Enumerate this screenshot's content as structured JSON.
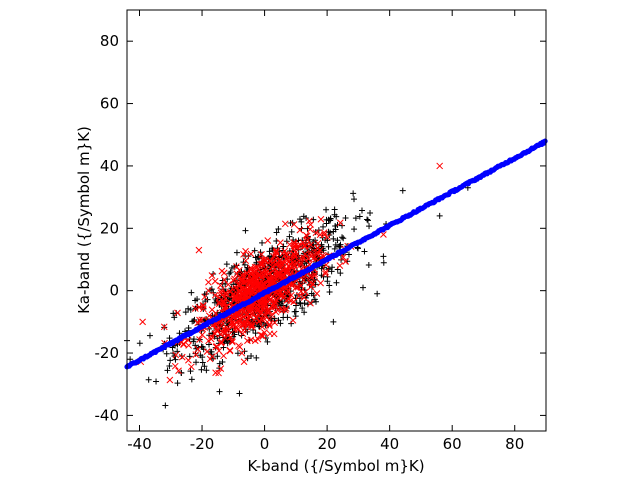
{
  "chart_data": {
    "type": "scatter",
    "xlabel": "K-band ({/Symbol m}K)",
    "ylabel": "Ka-band ({/Symbol m}K)",
    "xlim": [
      -44,
      90
    ],
    "ylim": [
      -45,
      90
    ],
    "x_ticks": [
      -40,
      -20,
      0,
      20,
      40,
      60,
      80
    ],
    "y_ticks": [
      -40,
      -20,
      0,
      20,
      40,
      60,
      80
    ],
    "x_tick_labels": [
      "-40",
      "-20",
      "0",
      "20",
      "40",
      "60",
      "80"
    ],
    "y_tick_labels": [
      "-40",
      "-20",
      "0",
      "20",
      "40",
      "60",
      "80"
    ],
    "grid": false,
    "legend": "none",
    "series": [
      {
        "marker": "plus",
        "color": "#000000",
        "description_count": 900,
        "center": [
          0,
          0
        ],
        "sd_x": 14,
        "sd_along": 0.6,
        "sd_perp": 7,
        "outliers": [
          [
            65,
            33
          ],
          [
            56,
            24
          ],
          [
            22,
            -10
          ],
          [
            -44,
            -16
          ],
          [
            -43,
            -22
          ],
          [
            36,
            -1
          ],
          [
            38,
            11
          ],
          [
            -32,
            -17
          ]
        ]
      },
      {
        "marker": "x",
        "color": "#ff0000",
        "description_count": 700,
        "center": [
          -2,
          0
        ],
        "sd_x": 10,
        "sd_along": 0.6,
        "sd_perp": 6,
        "outliers": [
          [
            56,
            40
          ],
          [
            -21,
            13
          ],
          [
            -39,
            -10
          ],
          [
            38,
            18
          ],
          [
            -14,
            -25
          ]
        ]
      },
      {
        "name": "",
        "marker": "dot",
        "color": "#0000ff",
        "line": {
          "slope": 0.54,
          "intercept": -0.7,
          "x_from": -44,
          "x_to": 90
        }
      }
    ]
  }
}
